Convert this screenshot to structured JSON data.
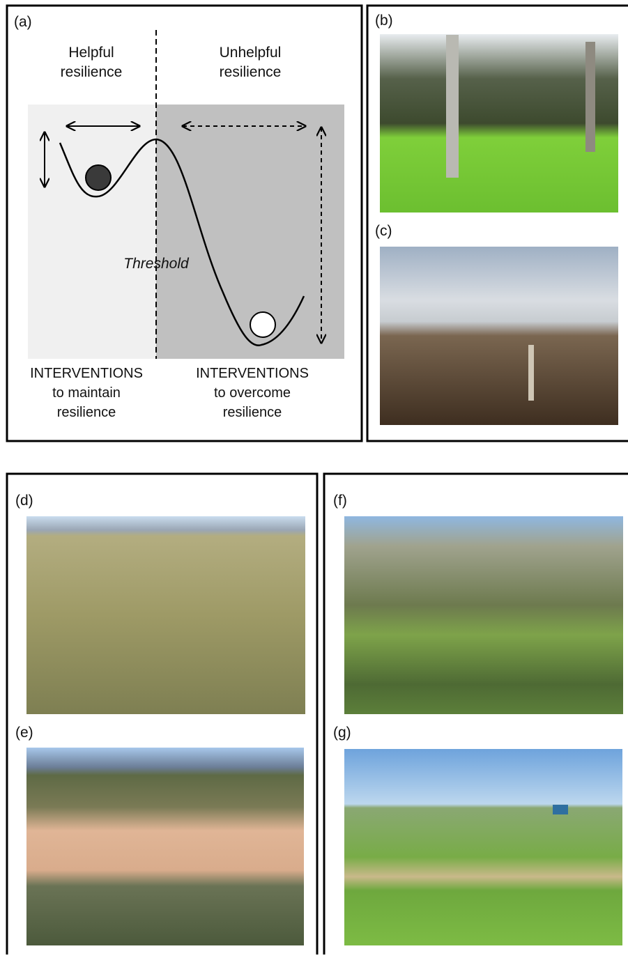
{
  "panels": {
    "a": {
      "label": "(a)",
      "left_heading": [
        "Helpful",
        "resilience"
      ],
      "right_heading": [
        "Unhelpful",
        "resilience"
      ],
      "threshold": "Threshold",
      "left_caption": [
        "INTERVENTIONS",
        "to maintain",
        "resilience"
      ],
      "right_caption": [
        "INTERVENTIONS",
        "to overcome",
        "resilience"
      ]
    },
    "b": {
      "label": "(b)"
    },
    "c": {
      "label": "(c)"
    },
    "d": {
      "label": "(d)"
    },
    "e": {
      "label": "(e)"
    },
    "f": {
      "label": "(f)"
    },
    "g": {
      "label": "(g)"
    }
  }
}
